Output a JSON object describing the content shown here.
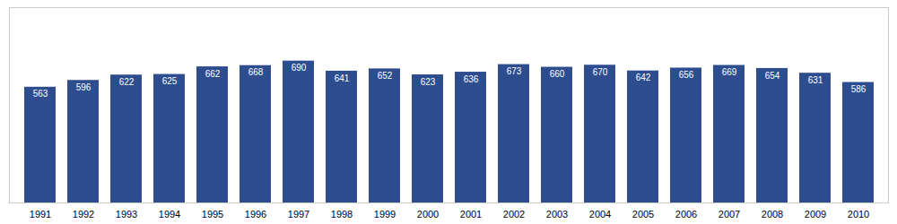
{
  "chart_data": {
    "type": "bar",
    "categories": [
      "1991",
      "1992",
      "1993",
      "1994",
      "1995",
      "1996",
      "1997",
      "1998",
      "1999",
      "2000",
      "2001",
      "2002",
      "2003",
      "2004",
      "2005",
      "2006",
      "2007",
      "2008",
      "2009",
      "2010"
    ],
    "values": [
      563,
      596,
      622,
      625,
      662,
      668,
      690,
      641,
      652,
      623,
      636,
      673,
      660,
      670,
      642,
      656,
      669,
      654,
      631,
      586
    ],
    "color": "#2e4d8f",
    "ylim": [
      0,
      950
    ],
    "data_labels": true,
    "tick_labels": "x",
    "grid": false
  }
}
